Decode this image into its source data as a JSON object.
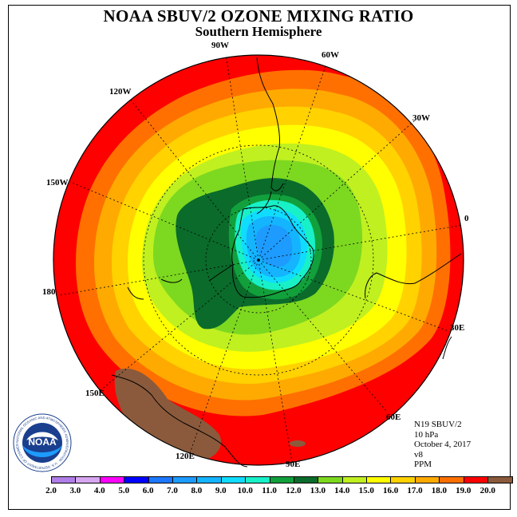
{
  "title": "NOAA SBUV/2 OZONE MIXING RATIO",
  "subtitle": "Southern Hemisphere",
  "longitude_labels": [
    "90W",
    "60W",
    "30W",
    "0",
    "30E",
    "60E",
    "90E",
    "120E",
    "150E",
    "180",
    "150W",
    "120W"
  ],
  "info": {
    "satellite": "N19 SBUV/2",
    "level": "10 hPa",
    "date": "October 4, 2017",
    "version": "v8",
    "units": "PPM"
  },
  "colorbar": {
    "ticks": [
      "2.0",
      "3.0",
      "4.0",
      "5.0",
      "6.0",
      "7.0",
      "8.0",
      "9.0",
      "10.0",
      "11.0",
      "12.0",
      "13.0",
      "14.0",
      "15.0",
      "16.0",
      "17.0",
      "18.0",
      "19.0",
      "20.0"
    ],
    "colors": [
      "#b07ee8",
      "#d7a6f0",
      "#ff00ff",
      "#0000ff",
      "#1e78ff",
      "#1e9bff",
      "#14b4ff",
      "#10dcff",
      "#18f0c8",
      "#12a03c",
      "#0a6b2b",
      "#7dd820",
      "#c0f020",
      "#ffff00",
      "#ffd200",
      "#ffaa00",
      "#ff7000",
      "#ff0000",
      "#8b5a3c"
    ]
  },
  "logo": {
    "text": "NOAA",
    "ring_text": "NATIONAL OCEANIC AND ATMOSPHERIC ADMINISTRATION · U.S. DEPARTMENT OF COMMERCE"
  },
  "map_colors": {
    "level_20": "#8b5a3c",
    "level_19": "#ff0000",
    "level_18": "#ff7000",
    "level_17": "#ffaa00",
    "level_16": "#ffd200",
    "level_15": "#ffff00",
    "level_14": "#c0f020",
    "level_13": "#7dd820",
    "level_12": "#0a6b2b",
    "level_11": "#12a03c",
    "level_10": "#18f0c8",
    "level_9": "#10dcff",
    "level_8": "#14b4ff",
    "level_7": "#1e9bff"
  }
}
